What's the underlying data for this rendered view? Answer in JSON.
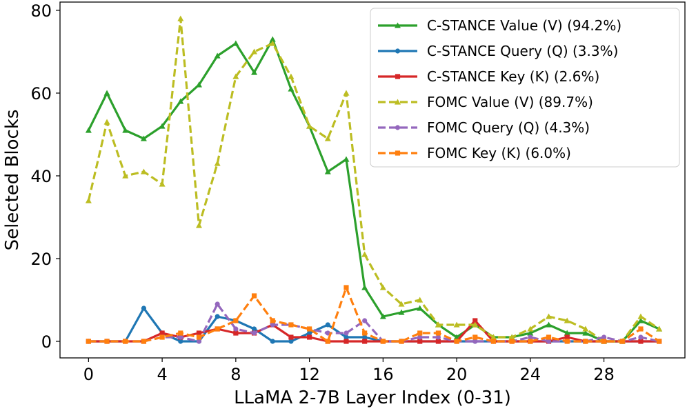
{
  "chart_data": {
    "type": "line",
    "title": "",
    "xlabel": "LLaMA 2-7B Layer Index (0-31)",
    "ylabel": "Selected Blocks",
    "xlim": [
      -1.55,
      32.4
    ],
    "ylim": [
      -4,
      82
    ],
    "xticks": [
      0,
      4,
      8,
      12,
      16,
      20,
      24,
      28
    ],
    "yticks": [
      0,
      20,
      40,
      60,
      80
    ],
    "grid": false,
    "legend_position": "top-right",
    "x": [
      0,
      1,
      2,
      3,
      4,
      5,
      6,
      7,
      8,
      9,
      10,
      11,
      12,
      13,
      14,
      15,
      16,
      17,
      18,
      19,
      20,
      21,
      22,
      23,
      24,
      25,
      26,
      27,
      28,
      29,
      30,
      31
    ],
    "series": [
      {
        "name": "C-STANCE Value (V) (94.2%)",
        "color": "#2ca02c",
        "style": "solid",
        "marker": "triangle",
        "values": [
          51,
          60,
          51,
          49,
          52,
          58,
          62,
          69,
          72,
          65,
          73,
          61,
          52,
          41,
          44,
          13,
          6,
          7,
          8,
          4,
          1,
          4,
          1,
          1,
          2,
          4,
          2,
          2,
          0,
          0,
          5,
          3
        ]
      },
      {
        "name": "C-STANCE Query (Q) (3.3%)",
        "color": "#1f77b4",
        "style": "solid",
        "marker": "circle",
        "values": [
          0,
          0,
          0,
          8,
          2,
          0,
          0,
          6,
          5,
          3,
          0,
          0,
          2,
          4,
          1,
          1,
          0,
          0,
          0,
          0,
          0,
          0,
          0,
          0,
          0,
          0,
          0,
          0,
          0,
          0,
          0,
          0
        ]
      },
      {
        "name": "C-STANCE Key (K) (2.6%)",
        "color": "#d62728",
        "style": "solid",
        "marker": "square",
        "values": [
          0,
          0,
          0,
          0,
          2,
          1,
          2,
          3,
          2,
          2,
          4,
          1,
          1,
          0,
          0,
          0,
          0,
          0,
          0,
          0,
          0,
          5,
          0,
          0,
          0,
          0,
          1,
          0,
          0,
          0,
          0,
          0
        ]
      },
      {
        "name": "FOMC Value (V) (89.7%)",
        "color": "#bcbd22",
        "style": "dashed",
        "marker": "triangle",
        "values": [
          34,
          53,
          40,
          41,
          38,
          78,
          28,
          43,
          64,
          70,
          72,
          64,
          52,
          49,
          60,
          21,
          13,
          9,
          10,
          4,
          4,
          4,
          1,
          1,
          3,
          6,
          5,
          3,
          0,
          0,
          6,
          3
        ]
      },
      {
        "name": "FOMC Query (Q) (4.3%)",
        "color": "#9467bd",
        "style": "dashed",
        "marker": "circle",
        "values": [
          0,
          0,
          0,
          0,
          1,
          1,
          0,
          9,
          3,
          2,
          4,
          4,
          3,
          2,
          2,
          5,
          0,
          0,
          1,
          1,
          0,
          0,
          0,
          0,
          1,
          0,
          0,
          0,
          1,
          0,
          1,
          0
        ]
      },
      {
        "name": "FOMC Key (K) (6.0%)",
        "color": "#ff7f0e",
        "style": "dashed",
        "marker": "square",
        "values": [
          0,
          0,
          0,
          0,
          1,
          2,
          1,
          3,
          5,
          11,
          5,
          4,
          3,
          0,
          13,
          2,
          0,
          0,
          2,
          2,
          0,
          1,
          0,
          0,
          0,
          1,
          0,
          0,
          0,
          0,
          3,
          0
        ]
      }
    ]
  }
}
